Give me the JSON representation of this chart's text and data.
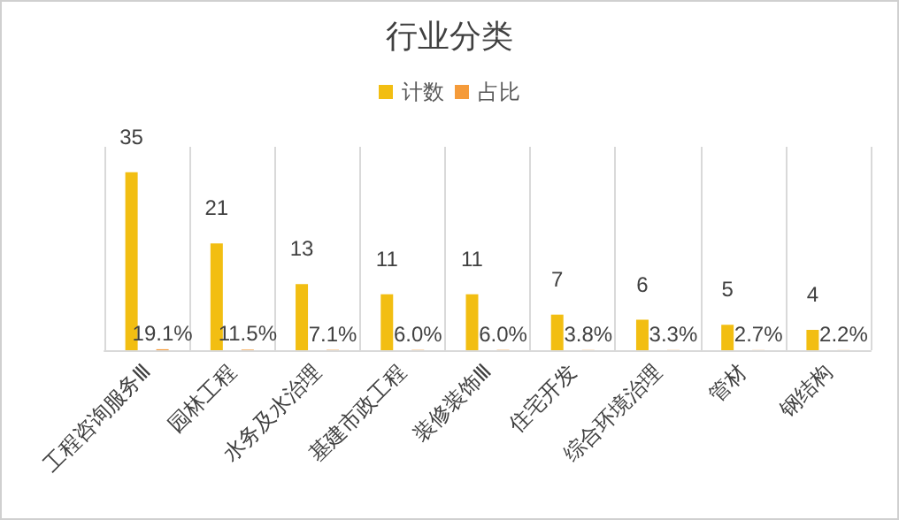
{
  "chart_data": {
    "type": "bar",
    "title": "行业分类",
    "categories": [
      "工程咨询服务Ⅲ",
      "园林工程",
      "水务及水治理",
      "基建市政工程",
      "装修装饰Ⅲ",
      "住宅开发",
      "综合环境治理",
      "管材",
      "钢结构"
    ],
    "series": [
      {
        "name": "计数",
        "color": "#f2be12",
        "values": [
          35,
          21,
          13,
          11,
          11,
          7,
          6,
          5,
          4
        ],
        "value_labels": [
          "35",
          "21",
          "13",
          "11",
          "11",
          "7",
          "6",
          "5",
          "4"
        ]
      },
      {
        "name": "占比",
        "color": "#f59b3a",
        "values": [
          0.191,
          0.115,
          0.071,
          0.06,
          0.06,
          0.038,
          0.033,
          0.027,
          0.022
        ],
        "value_labels": [
          "19.1%",
          "11.5%",
          "7.1%",
          "6.0%",
          "6.0%",
          "3.8%",
          "3.3%",
          "2.7%",
          "2.2%"
        ]
      }
    ],
    "grid": "x",
    "legend": "top",
    "tick_labels": "x"
  }
}
